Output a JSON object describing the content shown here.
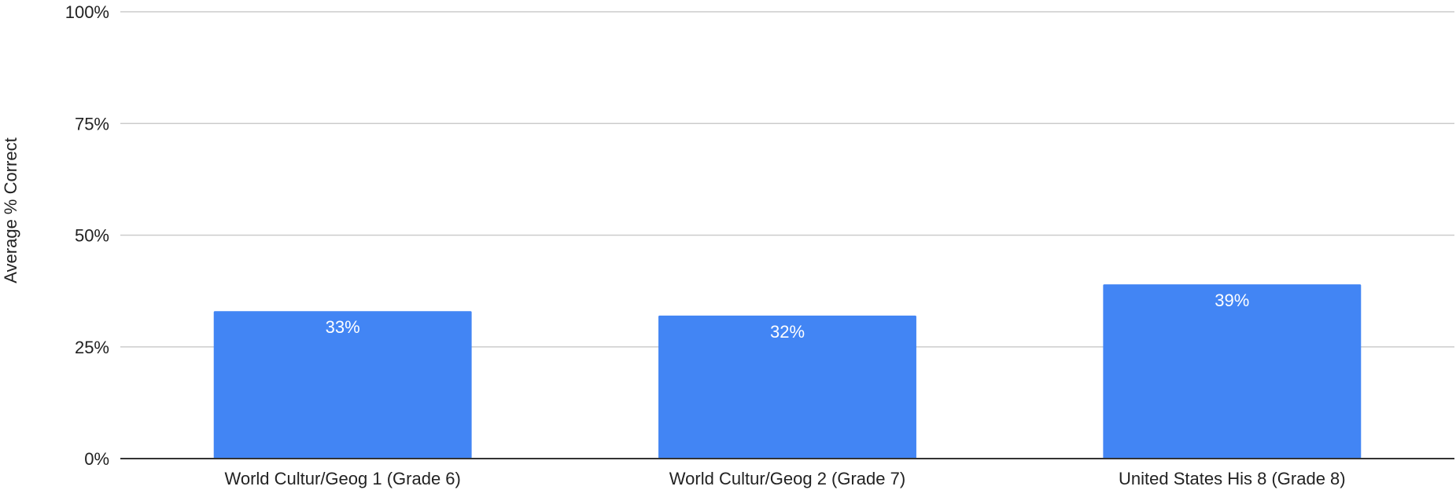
{
  "chart_data": {
    "type": "bar",
    "categories": [
      "World Cultur/Geog 1 (Grade 6)",
      "World Cultur/Geog 2 (Grade 7)",
      "United States His 8 (Grade 8)"
    ],
    "values": [
      33,
      32,
      39
    ],
    "data_labels": [
      "33%",
      "32%",
      "39%"
    ],
    "title": "",
    "xlabel": "",
    "ylabel": "Average % Correct",
    "ylim": [
      0,
      100
    ],
    "y_ticks": [
      0,
      25,
      50,
      75,
      100
    ],
    "y_tick_labels": [
      "0%",
      "25%",
      "50%",
      "75%",
      "100%"
    ],
    "grid": true,
    "legend": "none",
    "colors": {
      "bar": "#4285f4",
      "gridline": "#cccccc",
      "axis": "#333333",
      "data_label": "#ffffff"
    }
  }
}
